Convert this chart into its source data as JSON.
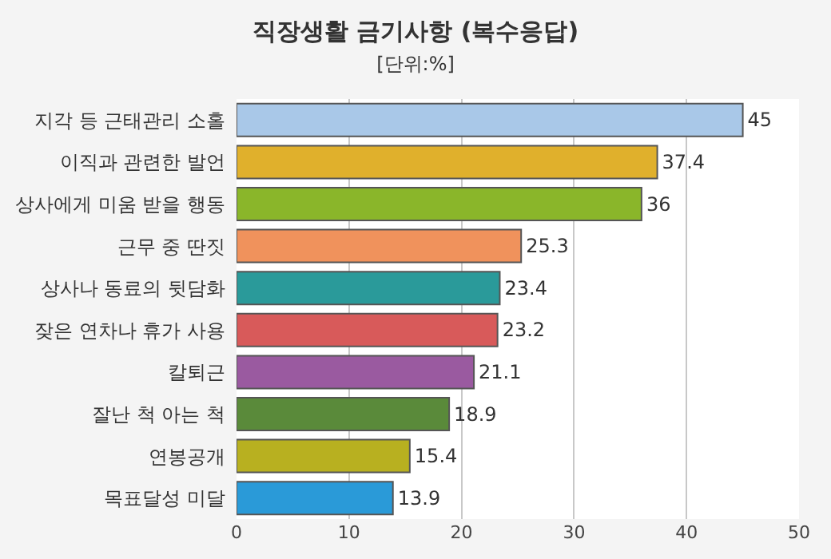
{
  "chart_data": {
    "type": "bar",
    "orientation": "horizontal",
    "title": "직장생활 금기사항 (복수응답)",
    "subtitle": "[단위:%]",
    "categories": [
      "지각 등 근태관리 소홀",
      "이직과 관련한 발언",
      "상사에게 미움 받을 행동",
      "근무 중 딴짓",
      "상사나 동료의 뒷담화",
      "잦은 연차나 휴가 사용",
      "칼퇴근",
      "잘난 척 아는 척",
      "연봉공개",
      "목표달성 미달"
    ],
    "values": [
      45,
      37.4,
      36,
      25.3,
      23.4,
      23.2,
      21.1,
      18.9,
      15.4,
      13.9
    ],
    "colors": [
      "#a9c8e8",
      "#e0b02c",
      "#8ab62a",
      "#f0925c",
      "#2a9a9a",
      "#d85a5a",
      "#9a5aa0",
      "#5a8a3a",
      "#b8b020",
      "#2a9ad8"
    ],
    "xlim": [
      0,
      50
    ],
    "xticks": [
      0,
      10,
      20,
      30,
      40,
      50
    ],
    "grid": "x",
    "data_labels": true
  }
}
